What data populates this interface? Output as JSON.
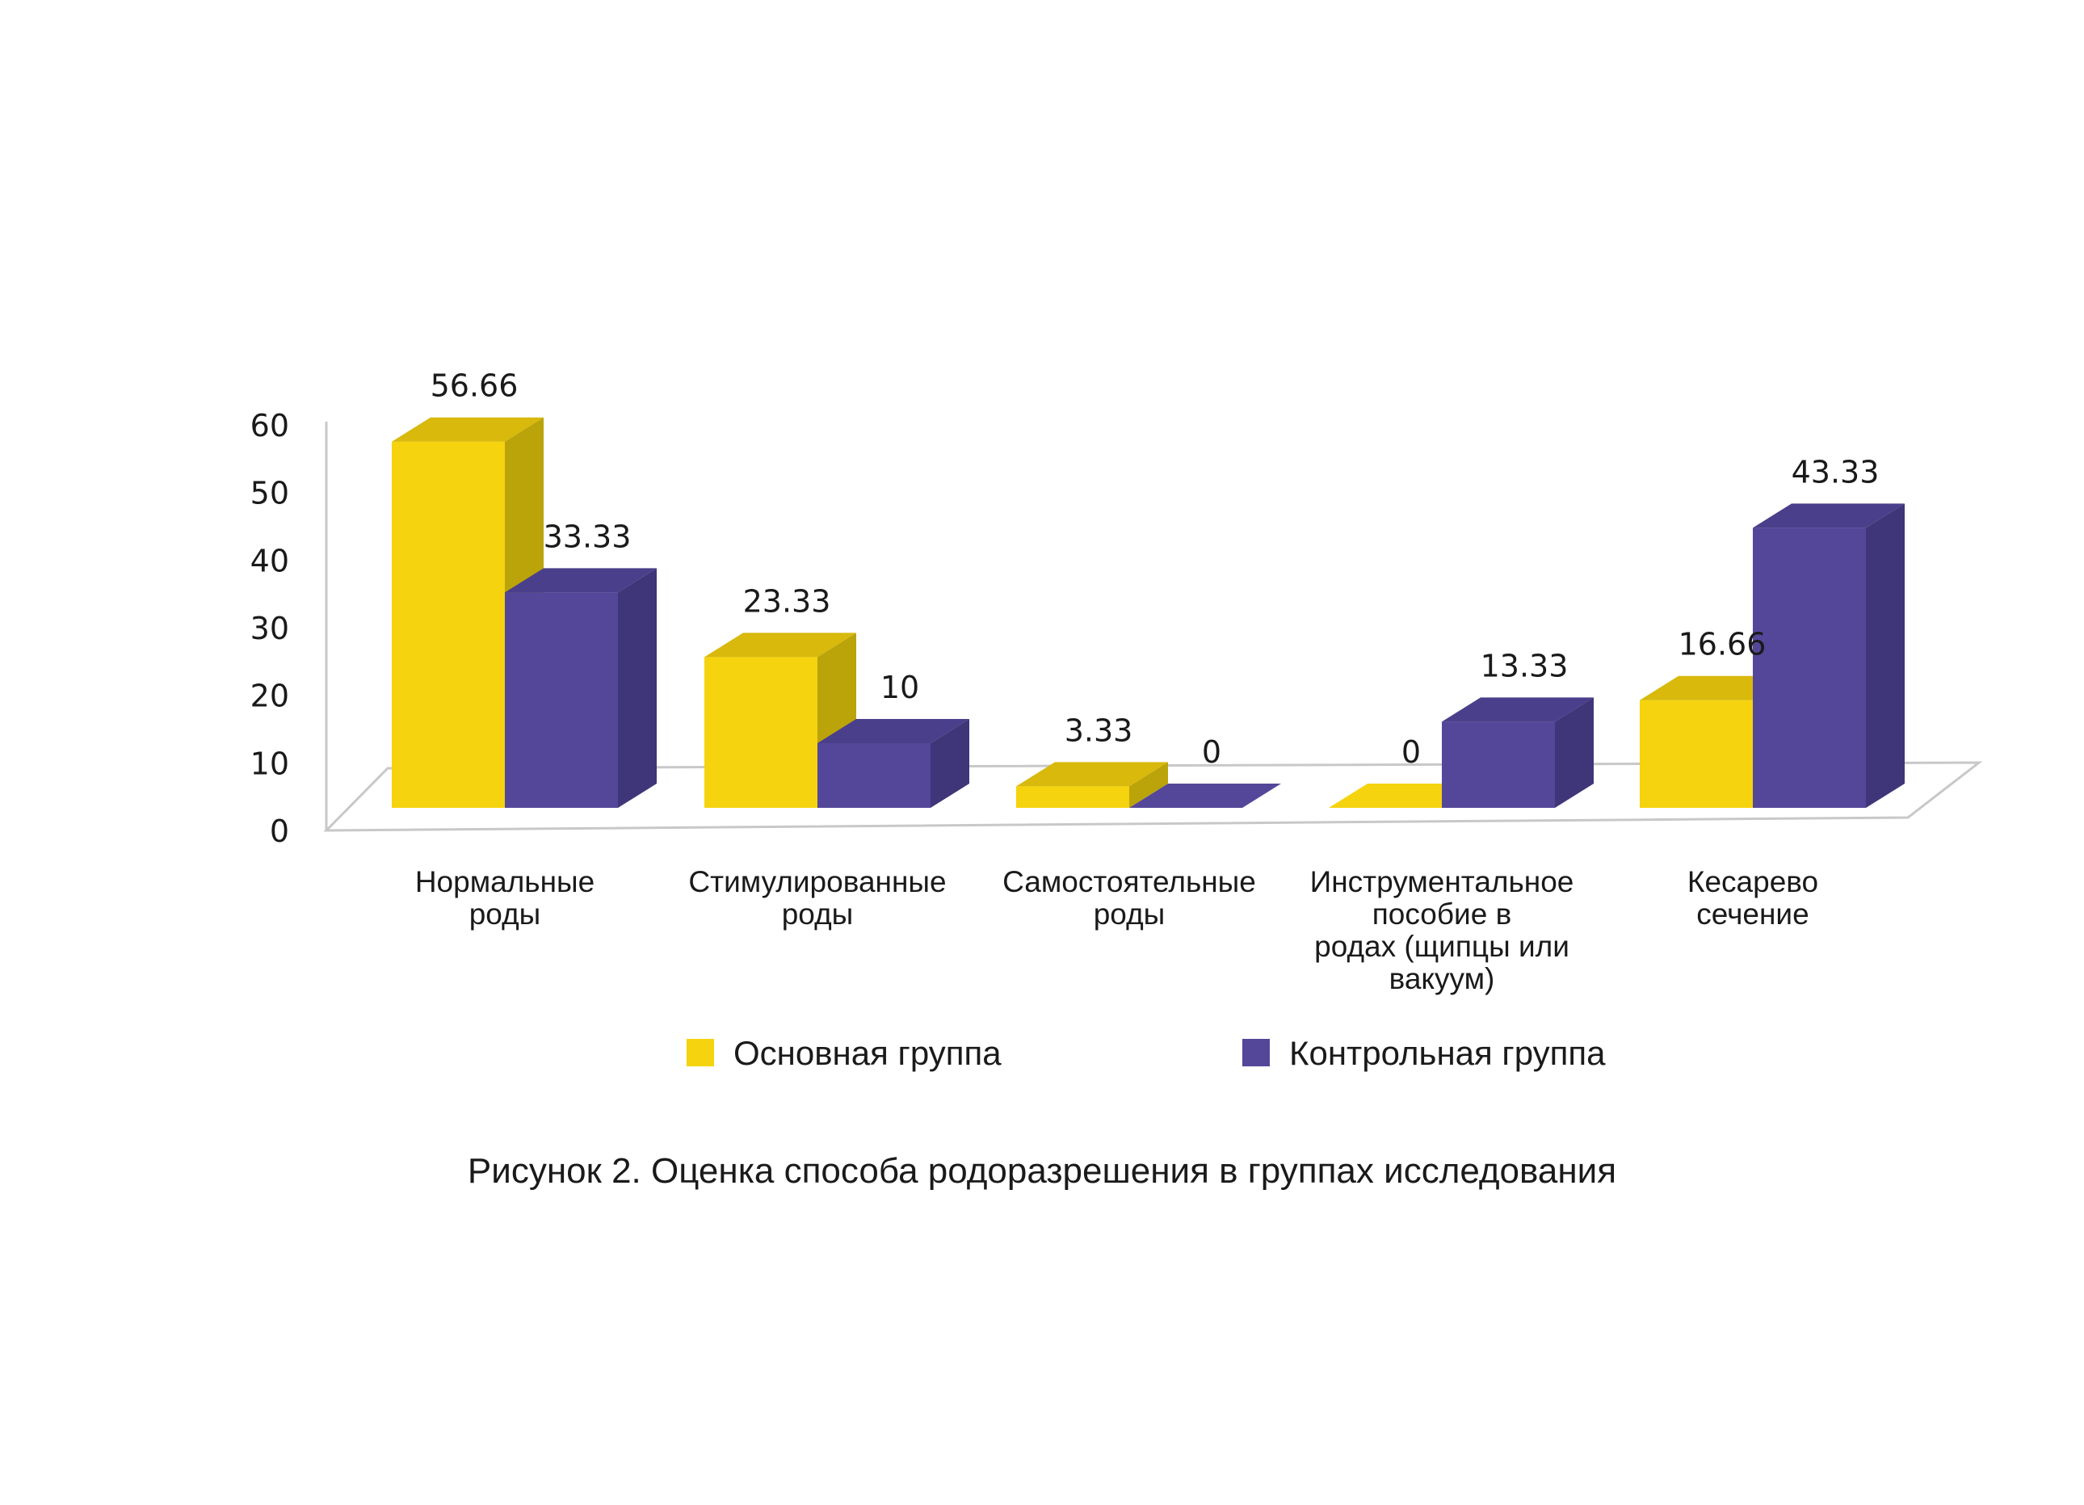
{
  "chart_data": {
    "type": "bar",
    "categories": [
      [
        "Нормальные",
        "роды"
      ],
      [
        "Стимулированные",
        "роды"
      ],
      [
        "Самостоятельные",
        "роды"
      ],
      [
        "Инструментальное",
        "пособие в",
        "родах (щипцы или",
        "вакуум)"
      ],
      [
        "Кесарево",
        "сечение"
      ]
    ],
    "series": [
      {
        "name": "Основная группа",
        "values": [
          56.66,
          23.33,
          3.33,
          0,
          16.66
        ],
        "labels": [
          "56.66",
          "23.33",
          "3.33",
          "0",
          "16.66"
        ],
        "color": "#F5D30F",
        "side_color": "#BBA30A",
        "top_color": "#D8B90C"
      },
      {
        "name": "Контрольная группа",
        "values": [
          33.33,
          10,
          0,
          13.33,
          43.33
        ],
        "labels": [
          "33.33",
          "10",
          "0",
          "13.33",
          "43.33"
        ],
        "color": "#544799",
        "side_color": "#3F3579",
        "top_color": "#4A3F8A"
      }
    ],
    "ylim": [
      0,
      60
    ],
    "yticks": [
      "0",
      "10",
      "20",
      "30",
      "40",
      "50",
      "60"
    ],
    "xlabel": "",
    "ylabel": "",
    "legend_position": "bottom",
    "grid": false
  },
  "caption": "Рисунок 2. Оценка способа родоразрешения в группах исследования"
}
